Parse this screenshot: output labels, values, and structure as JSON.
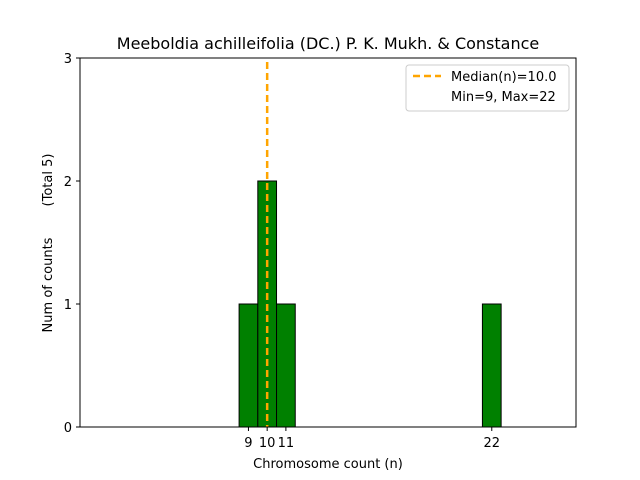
{
  "chart_data": {
    "type": "bar",
    "title": "Meeboldia achilleifolia (DC.) P. K. Mukh. & Constance",
    "xlabel": "Chromosome count (n)",
    "ylabel": "Num of counts",
    "ylabel_total": "(Total 5)",
    "xlim": [
      0,
      26.5
    ],
    "ylim": [
      0,
      3
    ],
    "x_ticks": [
      9,
      10,
      11,
      22
    ],
    "y_ticks": [
      0,
      1,
      2,
      3
    ],
    "bin_width": 1,
    "bars": [
      {
        "x": 9,
        "value": 1
      },
      {
        "x": 10,
        "value": 2
      },
      {
        "x": 11,
        "value": 1
      },
      {
        "x": 22,
        "value": 1
      }
    ],
    "median": 10.0,
    "bar_color": "#008000",
    "median_color": "#ffa500",
    "legend": {
      "placement": "top-right",
      "entries": [
        "Median(n)=10.0",
        "Min=9, Max=22"
      ]
    }
  }
}
